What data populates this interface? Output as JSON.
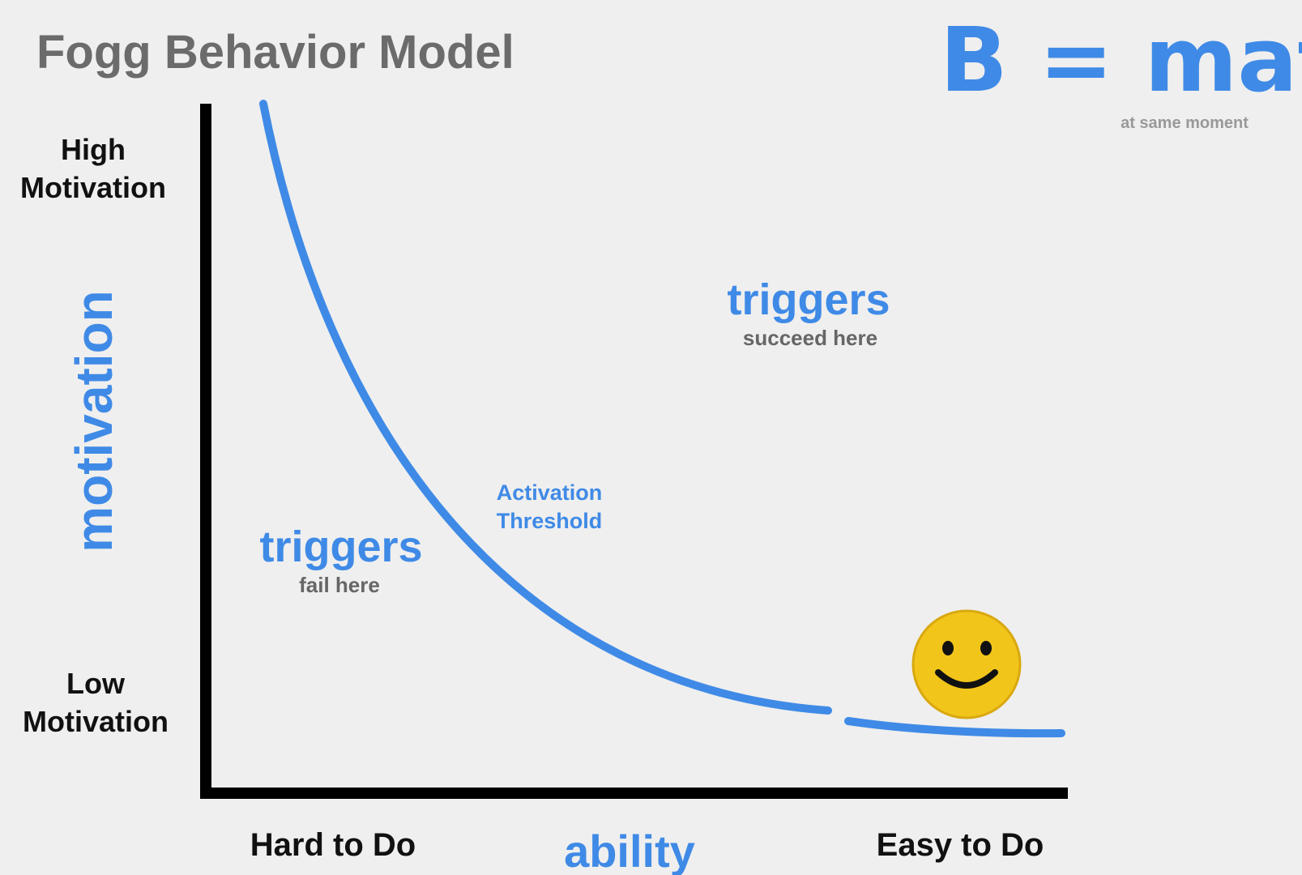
{
  "title": "Fogg Behavior Model",
  "formula": {
    "text": "B = mat",
    "note": "at same moment"
  },
  "y_axis": {
    "label": "motivation",
    "high": [
      "High",
      "Motivation"
    ],
    "low": [
      "Low",
      "Motivation"
    ]
  },
  "x_axis": {
    "label": "ability",
    "low": "Hard to Do",
    "high": "Easy to Do"
  },
  "regions": [
    {
      "label": "triggers",
      "note": "succeed here"
    },
    {
      "label": "triggers",
      "note": "fail here"
    }
  ],
  "curve": {
    "label": [
      "Activation",
      "Threshold"
    ]
  }
}
